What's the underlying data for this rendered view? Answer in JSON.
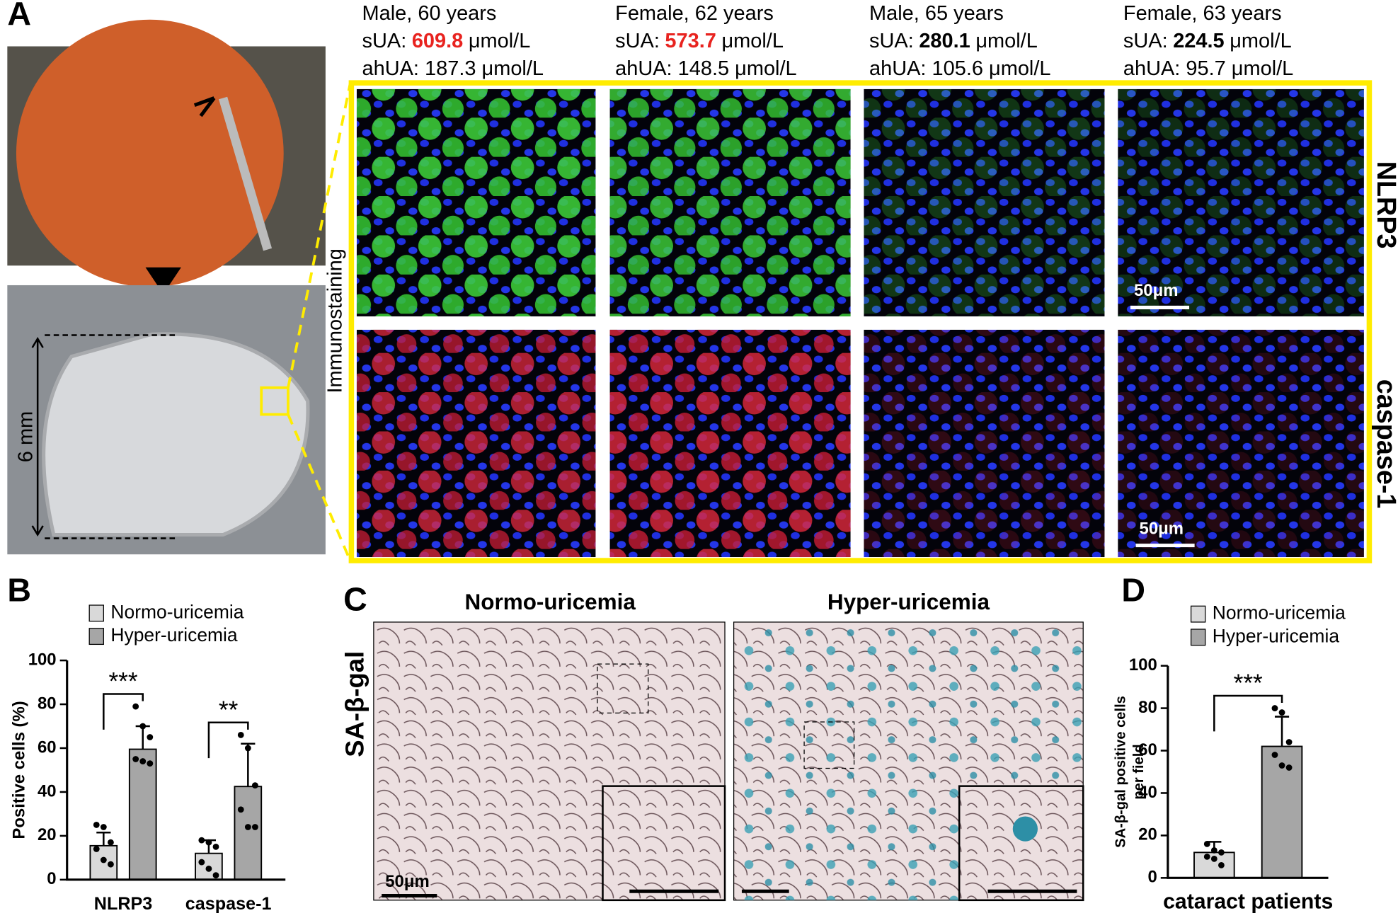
{
  "panel_a": {
    "label": "A",
    "scale_label": "6 mm",
    "side_label": "Immunostaining",
    "row_labels": [
      "NLRP3",
      "caspase-1"
    ],
    "scale_bar": "50μm",
    "columns": [
      {
        "subject": "Male, 60 years",
        "sua_label": "sUA:",
        "sua": "609.8",
        "sua_unit": "μmol/L",
        "sua_color": "#e8231f",
        "ahua": "ahUA: 187.3 μmol/L"
      },
      {
        "subject": "Female, 62 years",
        "sua_label": "sUA:",
        "sua": "573.7",
        "sua_unit": "μmol/L",
        "sua_color": "#e8231f",
        "ahua": "ahUA: 148.5 μmol/L"
      },
      {
        "subject": "Male, 65 years",
        "sua_label": "sUA:",
        "sua": "280.1",
        "sua_unit": "μmol/L",
        "sua_color": "#000000",
        "ahua": "ahUA: 105.6 μmol/L"
      },
      {
        "subject": "Female, 63 years",
        "sua_label": "sUA:",
        "sua": "224.5",
        "sua_unit": "μmol/L",
        "sua_color": "#000000",
        "ahua": "ahUA: 95.7 μmol/L"
      }
    ]
  },
  "panel_c": {
    "label": "C",
    "titles": [
      "Normo-uricemia",
      "Hyper-uricemia"
    ],
    "side_label": "SA-β-gal",
    "scale_bar": "50μm"
  },
  "chart_data": [
    {
      "type": "bar",
      "label": "B",
      "ylabel": [
        "Positive cells (%)"
      ],
      "categories": [
        "NLRP3",
        "caspase-1"
      ],
      "ylim": [
        0,
        100
      ],
      "yticks": [
        0,
        20,
        40,
        60,
        80,
        100
      ],
      "annotations": [
        "***",
        "**"
      ],
      "series": [
        {
          "name": "Normo-uricemia",
          "color": "#d9d9d9",
          "values": [
            15.5,
            12
          ],
          "errors": [
            6,
            6
          ],
          "points": [
            [
              25,
              24,
              17,
              14,
              9,
              7
            ],
            [
              18,
              17,
              15,
              8,
              5,
              2
            ]
          ]
        },
        {
          "name": "Hyper-uricemia",
          "color": "#a6a6a6",
          "values": [
            59.5,
            42.5
          ],
          "errors": [
            10.5,
            19.5
          ],
          "points": [
            [
              79,
              70,
              65,
              55,
              54,
              53
            ],
            [
              66,
              60,
              43,
              32,
              24,
              24
            ]
          ]
        }
      ]
    },
    {
      "type": "bar",
      "label": "D",
      "ylabel": [
        "SA-β-gal positive cells",
        "per field"
      ],
      "categories": [
        "cataract patients"
      ],
      "ylim": [
        0,
        100
      ],
      "yticks": [
        0,
        20,
        40,
        60,
        80,
        100
      ],
      "annotations": [
        "***"
      ],
      "series": [
        {
          "name": "Normo-uricemia",
          "color": "#d9d9d9",
          "values": [
            12
          ],
          "errors": [
            5
          ],
          "points": [
            [
              16,
              13,
              12,
              10,
              9,
              6
            ]
          ]
        },
        {
          "name": "Hyper-uricemia",
          "color": "#a6a6a6",
          "values": [
            62
          ],
          "errors": [
            14
          ],
          "points": [
            [
              80,
              78,
              64,
              58,
              53,
              52
            ]
          ]
        }
      ]
    }
  ]
}
